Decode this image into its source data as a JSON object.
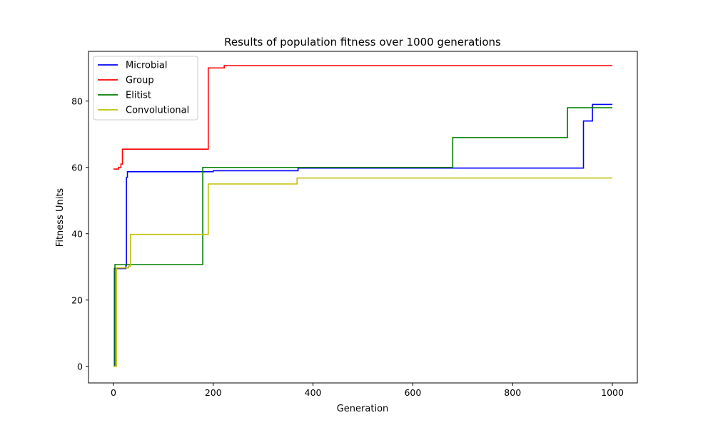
{
  "chart_data": {
    "type": "line",
    "title": "Results of population fitness over 1000 generations",
    "xlabel": "Generation",
    "ylabel": "Fitness Units",
    "xlim": [
      -50,
      1050
    ],
    "ylim": [
      -5,
      95
    ],
    "xticks": [
      0,
      200,
      400,
      600,
      800,
      1000
    ],
    "yticks": [
      0,
      20,
      40,
      60,
      80
    ],
    "grid": false,
    "legend_position": "upper-left",
    "series": [
      {
        "name": "Microbial",
        "color": "#0000ff",
        "step": true,
        "points": [
          [
            0,
            0
          ],
          [
            2,
            29.5
          ],
          [
            25,
            30.5
          ],
          [
            26,
            57
          ],
          [
            28,
            58.7
          ],
          [
            200,
            59
          ],
          [
            370,
            59.8
          ],
          [
            740,
            59.8
          ],
          [
            942,
            74
          ],
          [
            960,
            79
          ],
          [
            1000,
            79
          ]
        ]
      },
      {
        "name": "Group",
        "color": "#ff0000",
        "step": true,
        "points": [
          [
            0,
            59.5
          ],
          [
            10,
            60
          ],
          [
            15,
            61
          ],
          [
            18,
            65.5
          ],
          [
            190,
            90
          ],
          [
            222,
            90.7
          ],
          [
            1000,
            90.7
          ]
        ]
      },
      {
        "name": "Elitist",
        "color": "#008000",
        "step": true,
        "points": [
          [
            0,
            0
          ],
          [
            3,
            30.7
          ],
          [
            179,
            60
          ],
          [
            680,
            69
          ],
          [
            910,
            78
          ],
          [
            1000,
            78
          ]
        ]
      },
      {
        "name": "Convolutional",
        "color": "#bfbf00",
        "step": true,
        "points": [
          [
            0,
            0
          ],
          [
            6,
            29.7
          ],
          [
            30,
            30.2
          ],
          [
            34,
            39.8
          ],
          [
            190,
            55
          ],
          [
            368,
            56.8
          ],
          [
            1000,
            56.8
          ]
        ]
      }
    ]
  }
}
